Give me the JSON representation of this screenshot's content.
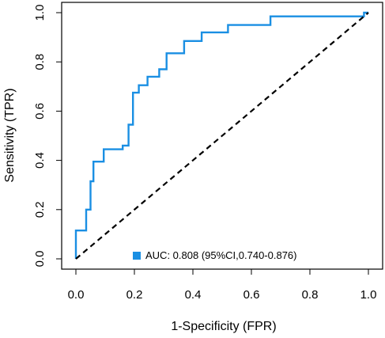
{
  "chart_data": {
    "type": "line",
    "xlabel": "1-Specificity (FPR)",
    "ylabel": "Sensitivity (TPR)",
    "xlim": [
      0,
      1
    ],
    "ylim": [
      0,
      1
    ],
    "x_ticks": [
      "0.0",
      "0.2",
      "0.4",
      "0.6",
      "0.8",
      "1.0"
    ],
    "y_ticks": [
      "0.0",
      "0.2",
      "0.4",
      "0.6",
      "0.8",
      "1.0"
    ],
    "grid": false,
    "legend": {
      "position": "bottom-right",
      "entries": [
        {
          "label": "AUC: 0.808 (95%CI,0.740-0.876)",
          "color": "#1a8fe3"
        }
      ]
    },
    "series": [
      {
        "name": "AUC: 0.808 (95%CI,0.740-0.876)",
        "color": "#1a8fe3",
        "style": "solid",
        "points": [
          [
            0.0,
            0.0
          ],
          [
            0.0,
            0.115
          ],
          [
            0.035,
            0.115
          ],
          [
            0.035,
            0.2
          ],
          [
            0.05,
            0.2
          ],
          [
            0.05,
            0.315
          ],
          [
            0.06,
            0.315
          ],
          [
            0.06,
            0.395
          ],
          [
            0.095,
            0.395
          ],
          [
            0.095,
            0.445
          ],
          [
            0.16,
            0.445
          ],
          [
            0.16,
            0.46
          ],
          [
            0.18,
            0.46
          ],
          [
            0.18,
            0.545
          ],
          [
            0.195,
            0.545
          ],
          [
            0.195,
            0.675
          ],
          [
            0.215,
            0.675
          ],
          [
            0.215,
            0.705
          ],
          [
            0.245,
            0.705
          ],
          [
            0.245,
            0.74
          ],
          [
            0.285,
            0.74
          ],
          [
            0.285,
            0.77
          ],
          [
            0.31,
            0.77
          ],
          [
            0.31,
            0.835
          ],
          [
            0.37,
            0.835
          ],
          [
            0.37,
            0.885
          ],
          [
            0.43,
            0.885
          ],
          [
            0.43,
            0.92
          ],
          [
            0.52,
            0.92
          ],
          [
            0.52,
            0.95
          ],
          [
            0.665,
            0.95
          ],
          [
            0.665,
            0.985
          ],
          [
            0.985,
            0.985
          ],
          [
            0.985,
            1.0
          ],
          [
            1.0,
            1.0
          ]
        ]
      },
      {
        "name": "",
        "color": "#000000",
        "style": "dashed",
        "points": [
          [
            0,
            0
          ],
          [
            1,
            1
          ]
        ]
      }
    ]
  }
}
